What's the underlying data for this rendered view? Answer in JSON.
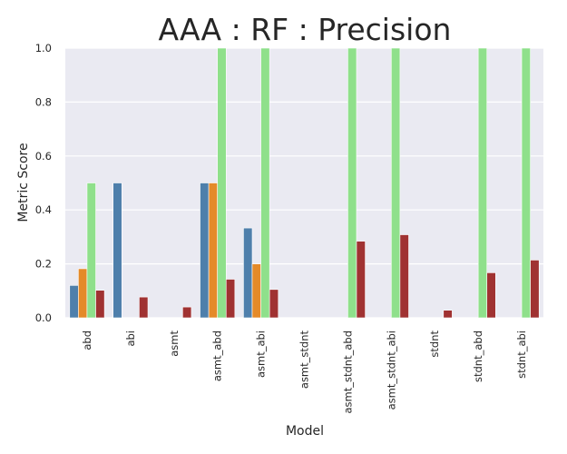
{
  "chart_data": {
    "type": "bar",
    "title": "AAA : RF : Precision",
    "xlabel": "Model",
    "ylabel": "Metric Score",
    "ylim": [
      0,
      1.0
    ],
    "yticks": [
      "0.0",
      "0.2",
      "0.4",
      "0.6",
      "0.8",
      "1.0"
    ],
    "grid": true,
    "categories": [
      "abd",
      "abi",
      "asmt",
      "asmt_abd",
      "asmt_abi",
      "asmt_stdnt",
      "asmt_stdnt_abd",
      "asmt_stdnt_abi",
      "stdnt",
      "stdnt_abd",
      "stdnt_abi"
    ],
    "series": [
      {
        "color": "#4e7fab",
        "values": [
          0.12,
          0.5,
          0.0,
          0.5,
          0.333,
          0.0,
          0.0,
          0.0,
          0.0,
          0.0,
          0.0
        ]
      },
      {
        "color": "#e48a29",
        "values": [
          0.182,
          0.0,
          0.0,
          0.5,
          0.2,
          0.0,
          0.0,
          0.0,
          0.0,
          0.0,
          0.0
        ]
      },
      {
        "color": "#8fe08b",
        "values": [
          0.5,
          0.0,
          0.0,
          1.0,
          1.0,
          0.0,
          1.0,
          1.0,
          0.0,
          1.0,
          1.0
        ]
      },
      {
        "color": "#a03232",
        "values": [
          0.102,
          0.077,
          0.04,
          0.143,
          0.105,
          0.0,
          0.284,
          0.308,
          0.028,
          0.167,
          0.214
        ]
      }
    ]
  }
}
